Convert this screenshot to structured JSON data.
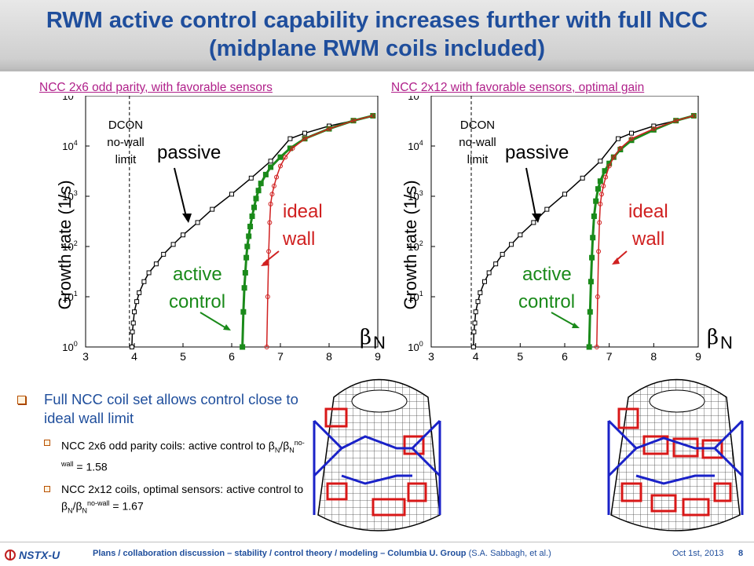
{
  "slide": {
    "title": "RWM active control capability increases further with full NCC (midplane RWM coils included)"
  },
  "panels": [
    {
      "title": "NCC 2x6 odd parity, with favorable sensors",
      "ylabel": "Growth rate (1/s)",
      "xlabel": "βN",
      "dcon_label_1": "DCON",
      "dcon_label_2": "no-wall",
      "dcon_label_3": "limit",
      "passive_label": "passive",
      "ideal_label_1": "ideal",
      "ideal_label_2": "wall",
      "active_label_1": "active",
      "control_label_2": "control"
    },
    {
      "title": "NCC 2x12 with favorable sensors, optimal gain",
      "ylabel": "Growth rate (1/s)",
      "xlabel": "βN",
      "dcon_label_1": "DCON",
      "dcon_label_2": "no-wall",
      "dcon_label_3": "limit",
      "passive_label": "passive",
      "ideal_label_1": "ideal",
      "ideal_label_2": "wall",
      "active_label_1": "active",
      "control_label_2": "control"
    }
  ],
  "chart_data": [
    {
      "type": "line",
      "title": "NCC 2x6 odd parity, with favorable sensors",
      "xlabel": "βN",
      "ylabel": "Growth rate (1/s)",
      "xlim": [
        3,
        9
      ],
      "ylim": [
        1,
        100000
      ],
      "yscale": "log",
      "xticks": [
        "3",
        "4",
        "5",
        "6",
        "7",
        "8",
        "9"
      ],
      "yticks": [
        "10^0",
        "10^1",
        "10^2",
        "10^3",
        "10^4",
        "10^5"
      ],
      "dcon_nowall_limit": 3.9,
      "series": [
        {
          "name": "passive",
          "color": "#000000",
          "x": [
            3.95,
            3.96,
            3.98,
            4.0,
            4.05,
            4.1,
            4.2,
            4.3,
            4.45,
            4.6,
            4.8,
            5.0,
            5.3,
            5.6,
            6.0,
            6.4,
            6.8,
            7.2,
            7.5,
            8.0,
            8.5,
            8.9
          ],
          "y": [
            1,
            2,
            3,
            5,
            8,
            12,
            20,
            30,
            45,
            70,
            110,
            170,
            300,
            550,
            1100,
            2300,
            5000,
            14000,
            18000,
            25000,
            32000,
            40000
          ]
        },
        {
          "name": "active control",
          "color": "#1a8a1a",
          "x": [
            6.22,
            6.24,
            6.26,
            6.28,
            6.3,
            6.32,
            6.35,
            6.38,
            6.42,
            6.46,
            6.5,
            6.55,
            6.6,
            6.7,
            6.8,
            7.0,
            7.2,
            7.5,
            8.0,
            8.5,
            8.9
          ],
          "y": [
            1,
            5,
            15,
            30,
            60,
            100,
            160,
            250,
            400,
            600,
            900,
            1300,
            1800,
            2700,
            3800,
            6000,
            9000,
            14000,
            22000,
            32000,
            40000
          ]
        },
        {
          "name": "ideal wall",
          "color": "#d02020",
          "x": [
            6.72,
            6.74,
            6.76,
            6.78,
            6.8,
            6.83,
            6.87,
            6.92,
            7.0,
            7.1,
            7.25,
            7.5,
            8.0,
            8.5,
            8.9
          ],
          "y": [
            1,
            10,
            80,
            300,
            700,
            1100,
            1600,
            2400,
            4000,
            6000,
            9000,
            14000,
            22000,
            32000,
            40000
          ]
        }
      ]
    },
    {
      "type": "line",
      "title": "NCC 2x12 with favorable sensors, optimal gain",
      "xlabel": "βN",
      "ylabel": "Growth rate (1/s)",
      "xlim": [
        3,
        9
      ],
      "ylim": [
        1,
        100000
      ],
      "yscale": "log",
      "xticks": [
        "3",
        "4",
        "5",
        "6",
        "7",
        "8",
        "9"
      ],
      "yticks": [
        "10^0",
        "10^1",
        "10^2",
        "10^3",
        "10^4",
        "10^5"
      ],
      "dcon_nowall_limit": 3.9,
      "series": [
        {
          "name": "passive",
          "color": "#000000",
          "x": [
            3.95,
            3.96,
            3.98,
            4.0,
            4.05,
            4.1,
            4.2,
            4.3,
            4.45,
            4.6,
            4.8,
            5.0,
            5.3,
            5.6,
            6.0,
            6.4,
            6.8,
            7.2,
            7.5,
            8.0,
            8.5,
            8.9
          ],
          "y": [
            1,
            2,
            3,
            5,
            8,
            12,
            20,
            30,
            45,
            70,
            110,
            170,
            300,
            550,
            1100,
            2300,
            5000,
            14000,
            18000,
            25000,
            32000,
            40000
          ]
        },
        {
          "name": "active control",
          "color": "#1a8a1a",
          "x": [
            6.55,
            6.57,
            6.59,
            6.61,
            6.63,
            6.66,
            6.7,
            6.75,
            6.8,
            6.9,
            7.0,
            7.1,
            7.25,
            7.5,
            8.0,
            8.5,
            8.9
          ],
          "y": [
            1,
            5,
            20,
            60,
            150,
            400,
            800,
            1400,
            2000,
            3200,
            4500,
            6000,
            8500,
            13000,
            21000,
            32000,
            40000
          ]
        },
        {
          "name": "ideal wall",
          "color": "#d02020",
          "x": [
            6.72,
            6.74,
            6.76,
            6.78,
            6.8,
            6.83,
            6.87,
            6.92,
            7.0,
            7.1,
            7.25,
            7.5,
            8.0,
            8.5,
            8.9
          ],
          "y": [
            1,
            10,
            80,
            300,
            700,
            1100,
            1600,
            2400,
            4000,
            6000,
            9000,
            14000,
            22000,
            32000,
            40000
          ]
        }
      ]
    }
  ],
  "bullets": {
    "main": "Full NCC coil set allows control close to ideal wall limit",
    "sub1_a": "NCC 2x6 odd parity coils: active control to β",
    "sub1_b": "N",
    "sub1_c": "/β",
    "sub1_d": "N",
    "sub1_e": "no-wall",
    "sub1_f": " = 1.58",
    "sub2_a": "NCC 2x12 coils, optimal sensors: active control to β",
    "sub2_b": "N",
    "sub2_c": "/β",
    "sub2_d": "N",
    "sub2_e": "no-wall",
    "sub2_f": " = 1.67"
  },
  "footer": {
    "org": "NSTX-U",
    "text": "Plans / collaboration discussion – stability / control theory / modeling – Columbia U. Group",
    "authors": " (S.A. Sabbagh, et al.)",
    "date": "Oct 1st, 2013",
    "page": "8"
  }
}
